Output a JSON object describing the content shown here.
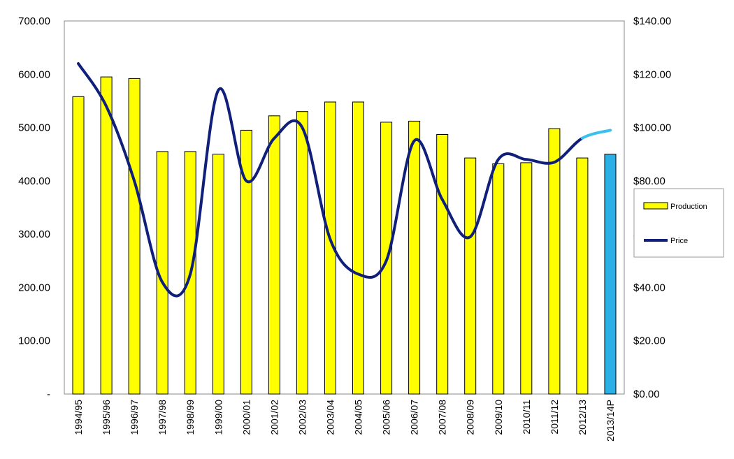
{
  "chart_data": {
    "type": "bar",
    "categories": [
      "1994/95",
      "1995/96",
      "1996/97",
      "1997/98",
      "1998/99",
      "1999/00",
      "2000/01",
      "2001/02",
      "2002/03",
      "2003/04",
      "2004/05",
      "2005/06",
      "2006/07",
      "2007/08",
      "2008/09",
      "2009/10",
      "2010/11",
      "2011/12",
      "2012/13",
      "2013/14P"
    ],
    "series": [
      {
        "name": "Production",
        "type": "bar",
        "axis": "left",
        "values": [
          558,
          595,
          592,
          455,
          455,
          450,
          495,
          522,
          530,
          548,
          548,
          510,
          512,
          487,
          443,
          432,
          434,
          498,
          443,
          450
        ],
        "color": "#ffff00",
        "projection_color": "#2ab0e6"
      },
      {
        "name": "Price",
        "type": "line",
        "axis": "right",
        "values": [
          124,
          108,
          80,
          42,
          45,
          114,
          80,
          96,
          100,
          58,
          45,
          50,
          95,
          73,
          59,
          88,
          88,
          87,
          96,
          99
        ],
        "color": "#0f1f7a",
        "projection_color": "#3ac0ec"
      }
    ],
    "left_axis": {
      "range": [
        0,
        700
      ],
      "ticks": [
        "-",
        "100.00",
        "200.00",
        "300.00",
        "400.00",
        "500.00",
        "600.00",
        "700.00"
      ]
    },
    "right_axis": {
      "range": [
        0,
        140
      ],
      "ticks": [
        "$0.00",
        "$20.00",
        "$40.00",
        "$60.00",
        "$80.00",
        "$100.00",
        "$120.00",
        "$140.00"
      ]
    },
    "legend": {
      "placement": "right",
      "entries": [
        "Production",
        "Price"
      ]
    },
    "grid": false
  }
}
